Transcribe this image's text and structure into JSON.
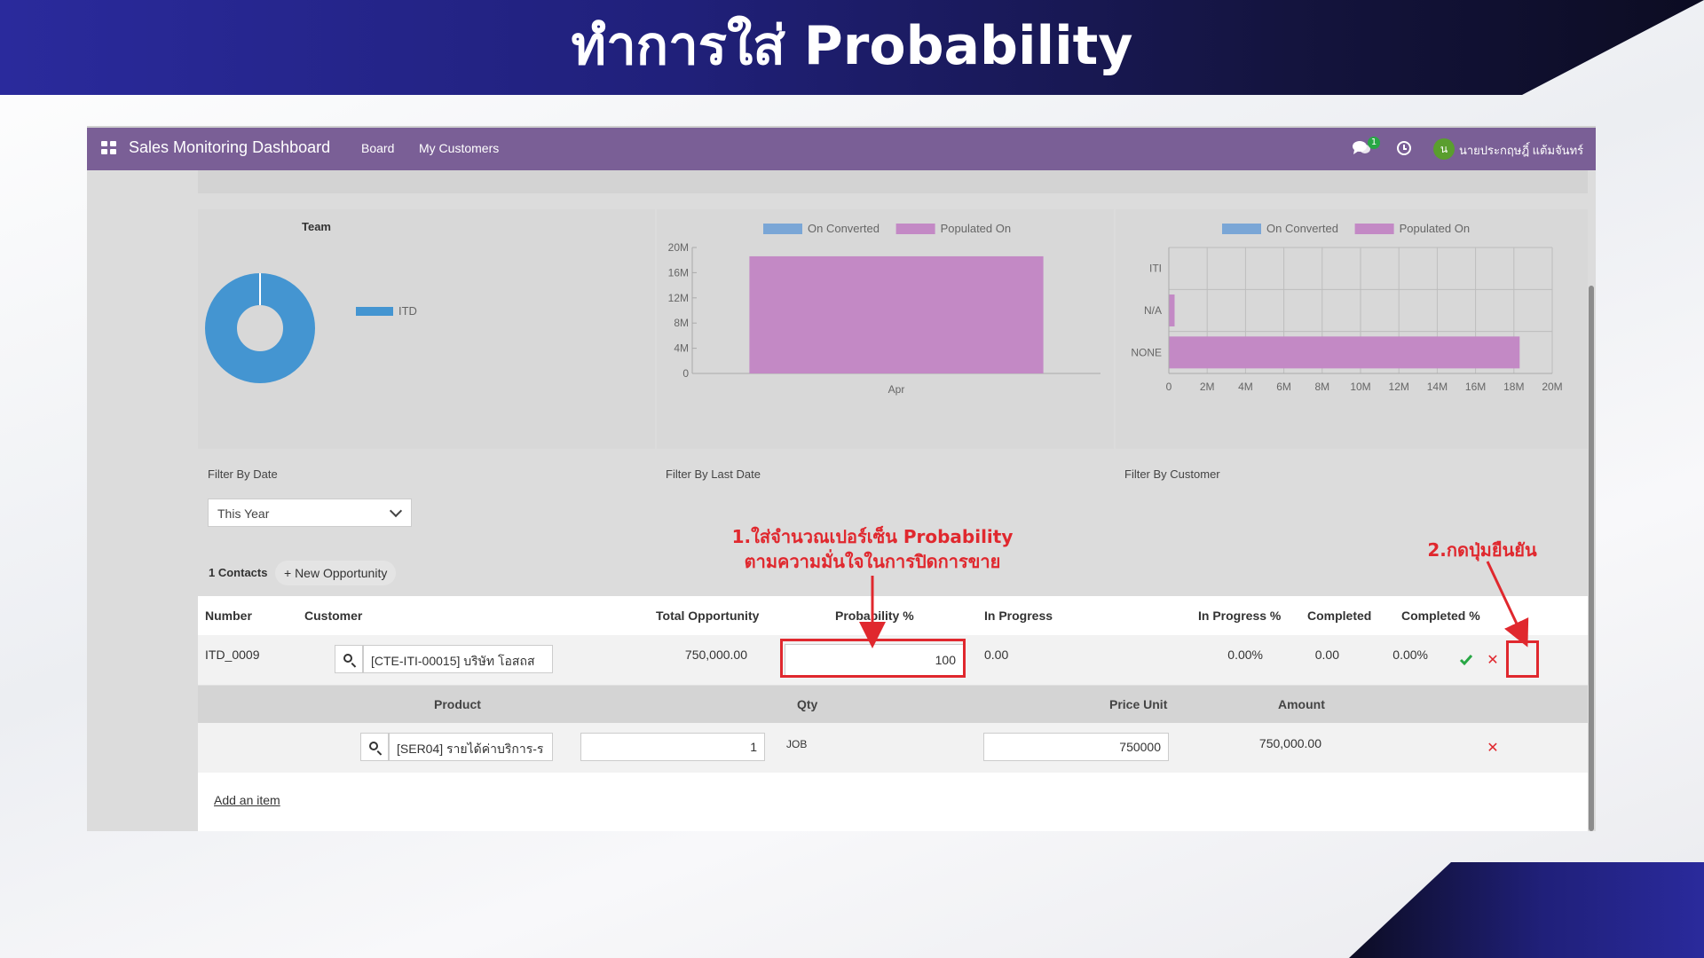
{
  "slide": {
    "title": "ทำการใส่ Probability"
  },
  "navbar": {
    "brand": "Sales Monitoring Dashboard",
    "menu": [
      "Board",
      "My Customers"
    ],
    "chat_badge": "1",
    "avatar_letter": "น",
    "username": "นายประกฤษฎิ์ แต้มจันทร์"
  },
  "chart_data": [
    {
      "type": "pie",
      "title": "Team",
      "labels": [
        "ITD"
      ],
      "values": [
        100
      ],
      "colors": [
        "#4495d1"
      ],
      "legend": "right"
    },
    {
      "type": "bar",
      "categories": [
        "Apr"
      ],
      "series": [
        {
          "name": "On Converted",
          "values": [
            0
          ],
          "color": "#7aa6d6"
        },
        {
          "name": "Populated On",
          "values": [
            18600000
          ],
          "color": "#c389c5"
        }
      ],
      "ylim": [
        0,
        20000000
      ],
      "yticks": [
        "0",
        "4M",
        "8M",
        "12M",
        "16M",
        "20M"
      ],
      "legend": "top"
    },
    {
      "type": "bar",
      "orientation": "horizontal",
      "categories": [
        "ITI",
        "N/A",
        "NONE"
      ],
      "series": [
        {
          "name": "On Converted",
          "values": [
            0,
            0,
            0
          ],
          "color": "#7aa6d6"
        },
        {
          "name": "Populated On",
          "values": [
            0,
            300000,
            18300000
          ],
          "color": "#c389c5"
        }
      ],
      "xlim": [
        0,
        20000000
      ],
      "xticks": [
        "0",
        "2M",
        "4M",
        "6M",
        "8M",
        "10M",
        "12M",
        "14M",
        "16M",
        "18M",
        "20M"
      ],
      "grid": true,
      "legend": "top"
    }
  ],
  "filters": {
    "date_label": "Filter By Date",
    "date_value": "This Year",
    "last_date_label": "Filter By Last Date",
    "customer_label": "Filter By Customer"
  },
  "contacts": {
    "count_label": "1 Contacts",
    "new_button": "+ New Opportunity"
  },
  "table": {
    "headers": {
      "number": "Number",
      "customer": "Customer",
      "total": "Total Opportunity",
      "probability": "Probability %",
      "in_progress": "In Progress",
      "in_progress_pct": "In Progress %",
      "completed": "Completed",
      "completed_pct": "Completed %"
    },
    "row": {
      "number": "ITD_0009",
      "customer": "[CTE-ITI-00015] บริษัท โอสถส",
      "total": "750,000.00",
      "probability": "100",
      "in_progress": "0.00",
      "in_progress_pct": "0.00%",
      "completed": "0.00",
      "completed_pct": "0.00%"
    },
    "sub_headers": {
      "product": "Product",
      "qty": "Qty",
      "price_unit": "Price Unit",
      "amount": "Amount"
    },
    "line": {
      "product": "[SER04] รายได้ค่าบริการ-ร",
      "qty": "1",
      "uom": "JOB",
      "price_unit": "750000",
      "amount": "750,000.00"
    },
    "add_item": "Add an item"
  },
  "annotations": {
    "step1_line1": "1.ใส่จำนวณเปอร์เซ็น Probability",
    "step1_line2": "ตามความมั่นใจในการปิดการขาย",
    "step2": "2.กดปุ่มยืนยัน"
  },
  "colors": {
    "navbar": "#7a5f96",
    "accent_red": "#e0282e",
    "confirm_green": "#28a745"
  }
}
